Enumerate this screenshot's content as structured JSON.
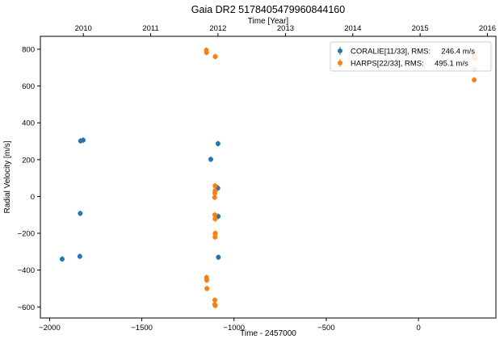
{
  "chart_data": {
    "type": "scatter",
    "title": "Gaia DR2 5178405479960844160",
    "xlabel": "Time - 2457000",
    "ylabel": "Radial Velocity [m/s]",
    "top_xlabel": "Time [Year]",
    "xlim": [
      -2050,
      420
    ],
    "ylim": [
      -660,
      870
    ],
    "xticks": [
      -2000,
      -1500,
      -1000,
      -500,
      0
    ],
    "yticks": [
      -600,
      -400,
      -200,
      0,
      200,
      400,
      600,
      800
    ],
    "top_ticks": [
      {
        "label": "2010",
        "x": -1817
      },
      {
        "label": "2011",
        "x": -1452
      },
      {
        "label": "2012",
        "x": -1087
      },
      {
        "label": "2013",
        "x": -721
      },
      {
        "label": "2014",
        "x": -356
      },
      {
        "label": "2015",
        "x": 9
      },
      {
        "label": "2016",
        "x": 374
      }
    ],
    "grid": false,
    "legend_position": "top-right",
    "series": [
      {
        "name": "CORALIE[11/33], RMS:     246.4 m/s",
        "color": "#1f77b4",
        "points": [
          {
            "x": -1932,
            "y": -340
          },
          {
            "x": -1836,
            "y": -325
          },
          {
            "x": -1834,
            "y": -92
          },
          {
            "x": -1832,
            "y": 302
          },
          {
            "x": -1818,
            "y": 306
          },
          {
            "x": -1126,
            "y": 202
          },
          {
            "x": -1090,
            "y": 47
          },
          {
            "x": -1088,
            "y": 45
          },
          {
            "x": -1087,
            "y": 287
          },
          {
            "x": -1086,
            "y": -108
          },
          {
            "x": -1085,
            "y": -330
          }
        ]
      },
      {
        "name": "HARPS[22/33], RMS:     495.1 m/s",
        "color": "#ff7f0e",
        "points": [
          {
            "x": -1150,
            "y": 795
          },
          {
            "x": -1149,
            "y": 782
          },
          {
            "x": -1102,
            "y": 760
          },
          {
            "x": -1149,
            "y": -440
          },
          {
            "x": -1148,
            "y": -455
          },
          {
            "x": -1147,
            "y": -500
          },
          {
            "x": -1103,
            "y": 58
          },
          {
            "x": -1103,
            "y": 32
          },
          {
            "x": -1104,
            "y": 18
          },
          {
            "x": -1105,
            "y": -5
          },
          {
            "x": -1104,
            "y": -100
          },
          {
            "x": -1103,
            "y": -122
          },
          {
            "x": -1102,
            "y": -200
          },
          {
            "x": -1103,
            "y": -220
          },
          {
            "x": -1104,
            "y": -563
          },
          {
            "x": -1105,
            "y": -587
          },
          {
            "x": -1102,
            "y": -592
          },
          {
            "x": 302,
            "y": 770
          },
          {
            "x": 303,
            "y": 758
          },
          {
            "x": 304,
            "y": 750
          },
          {
            "x": 303,
            "y": 693
          },
          {
            "x": 302,
            "y": 633
          }
        ]
      }
    ]
  }
}
